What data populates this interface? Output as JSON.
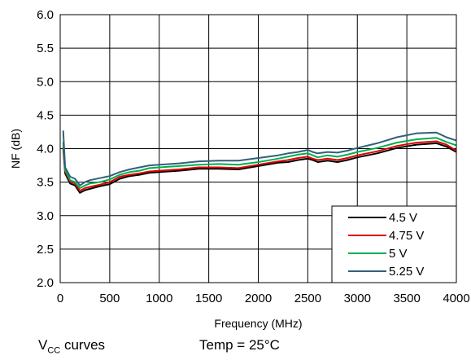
{
  "chart_data": {
    "type": "line",
    "xlabel": "Frequency (MHz)",
    "ylabel": "NF (dB)",
    "xlim": [
      0,
      4000
    ],
    "ylim": [
      2.0,
      6.0
    ],
    "xticks": [
      0,
      500,
      1000,
      1500,
      2000,
      2500,
      3000,
      3500,
      4000
    ],
    "yticks": [
      "2.0",
      "2.5",
      "3.0",
      "3.5",
      "4.0",
      "4.5",
      "5.0",
      "5.5",
      "6.0"
    ],
    "grid": true,
    "legend_position": "bottom-right",
    "series": [
      {
        "name": "4.5 V",
        "color": "#000000",
        "x": [
          30,
          50,
          100,
          150,
          200,
          250,
          300,
          400,
          500,
          600,
          700,
          800,
          900,
          1000,
          1200,
          1400,
          1600,
          1800,
          2000,
          2200,
          2300,
          2400,
          2500,
          2550,
          2600,
          2700,
          2800,
          2900,
          3000,
          3200,
          3400,
          3600,
          3800,
          3900,
          4000
        ],
        "y": [
          4.0,
          3.63,
          3.48,
          3.45,
          3.34,
          3.38,
          3.4,
          3.44,
          3.47,
          3.55,
          3.59,
          3.61,
          3.64,
          3.65,
          3.67,
          3.7,
          3.7,
          3.69,
          3.74,
          3.79,
          3.8,
          3.83,
          3.85,
          3.83,
          3.8,
          3.82,
          3.8,
          3.83,
          3.87,
          3.93,
          4.01,
          4.06,
          4.08,
          4.03,
          3.95
        ]
      },
      {
        "name": "4.75 V",
        "color": "#e00000",
        "x": [
          30,
          50,
          100,
          150,
          200,
          250,
          300,
          400,
          500,
          600,
          700,
          800,
          900,
          1000,
          1200,
          1400,
          1600,
          1800,
          2000,
          2200,
          2300,
          2400,
          2500,
          2550,
          2600,
          2700,
          2800,
          2900,
          3000,
          3200,
          3400,
          3600,
          3800,
          3900,
          4000
        ],
        "y": [
          4.03,
          3.66,
          3.51,
          3.48,
          3.37,
          3.41,
          3.43,
          3.46,
          3.5,
          3.58,
          3.61,
          3.63,
          3.66,
          3.67,
          3.69,
          3.72,
          3.72,
          3.71,
          3.76,
          3.81,
          3.83,
          3.86,
          3.88,
          3.85,
          3.83,
          3.85,
          3.83,
          3.86,
          3.9,
          3.96,
          4.04,
          4.09,
          4.11,
          4.06,
          3.97
        ]
      },
      {
        "name": "5 V",
        "color": "#00b050",
        "x": [
          30,
          50,
          100,
          150,
          200,
          250,
          300,
          400,
          500,
          600,
          700,
          800,
          900,
          1000,
          1200,
          1400,
          1600,
          1800,
          2000,
          2200,
          2300,
          2400,
          2500,
          2550,
          2600,
          2700,
          2800,
          2900,
          3000,
          3200,
          3400,
          3600,
          3800,
          3900,
          4000
        ],
        "y": [
          4.1,
          3.68,
          3.53,
          3.5,
          3.41,
          3.45,
          3.48,
          3.5,
          3.54,
          3.61,
          3.65,
          3.67,
          3.71,
          3.72,
          3.74,
          3.76,
          3.77,
          3.76,
          3.8,
          3.85,
          3.88,
          3.91,
          3.93,
          3.9,
          3.87,
          3.9,
          3.88,
          3.91,
          3.95,
          4.01,
          4.09,
          4.14,
          4.16,
          4.1,
          4.05
        ]
      },
      {
        "name": "5.25 V",
        "color": "#31607a",
        "x": [
          30,
          50,
          100,
          150,
          200,
          250,
          300,
          400,
          500,
          600,
          700,
          800,
          900,
          1000,
          1200,
          1400,
          1600,
          1800,
          2000,
          2200,
          2300,
          2400,
          2500,
          2550,
          2600,
          2700,
          2800,
          2900,
          3000,
          3200,
          3400,
          3600,
          3800,
          3900,
          4000
        ],
        "y": [
          4.27,
          3.72,
          3.58,
          3.55,
          3.45,
          3.5,
          3.53,
          3.56,
          3.59,
          3.65,
          3.69,
          3.72,
          3.75,
          3.76,
          3.78,
          3.81,
          3.82,
          3.82,
          3.86,
          3.9,
          3.93,
          3.95,
          3.98,
          3.95,
          3.93,
          3.95,
          3.94,
          3.97,
          4.01,
          4.08,
          4.17,
          4.23,
          4.24,
          4.17,
          4.12
        ]
      }
    ]
  },
  "captions": {
    "vcc_main": "V",
    "vcc_sub": "CC",
    "vcc_rest": " curves",
    "temp": "Temp = 25°C"
  }
}
